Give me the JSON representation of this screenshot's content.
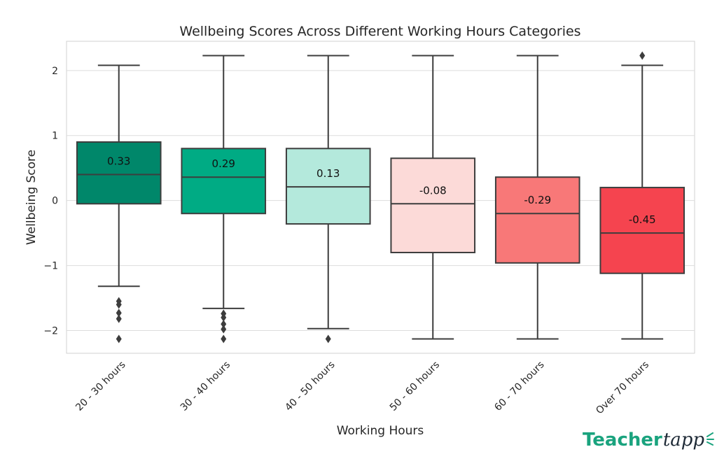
{
  "chart_data": {
    "type": "box",
    "title": "Wellbeing Scores Across Different Working Hours Categories",
    "xlabel": "Working Hours",
    "ylabel": "Wellbeing Score",
    "ylim": [
      -2.35,
      2.45
    ],
    "yticks": [
      -2,
      -1,
      0,
      1,
      2
    ],
    "ytick_labels": [
      "−2",
      "−1",
      "0",
      "1",
      "2"
    ],
    "grid": true,
    "categories": [
      "20 - 30 hours",
      "30 - 40 hours",
      "40 - 50 hours",
      "50 - 60 hours",
      "60 - 70 hours",
      "Over 70 hours"
    ],
    "boxes": [
      {
        "category": "20 - 30 hours",
        "whisker_low": -1.32,
        "q1": -0.05,
        "median": 0.4,
        "q3": 0.9,
        "whisker_high": 2.08,
        "outliers": [
          -1.55,
          -1.6,
          -1.73,
          -1.82,
          -2.13
        ],
        "mean_label": "0.33",
        "color": "#00876a"
      },
      {
        "category": "30 - 40 hours",
        "whisker_low": -1.66,
        "q1": -0.2,
        "median": 0.36,
        "q3": 0.8,
        "whisker_high": 2.23,
        "outliers": [
          -1.74,
          -1.8,
          -1.9,
          -1.98,
          -2.13
        ],
        "mean_label": "0.29",
        "color": "#00ab84"
      },
      {
        "category": "40 - 50 hours",
        "whisker_low": -1.97,
        "q1": -0.36,
        "median": 0.21,
        "q3": 0.8,
        "whisker_high": 2.23,
        "outliers": [
          -2.13
        ],
        "mean_label": "0.13",
        "color": "#b4e9dc"
      },
      {
        "category": "50 - 60 hours",
        "whisker_low": -2.13,
        "q1": -0.8,
        "median": -0.05,
        "q3": 0.65,
        "whisker_high": 2.23,
        "outliers": [],
        "mean_label": "-0.08",
        "color": "#fcdad8"
      },
      {
        "category": "60 - 70 hours",
        "whisker_low": -2.13,
        "q1": -0.96,
        "median": -0.2,
        "q3": 0.36,
        "whisker_high": 2.23,
        "outliers": [],
        "mean_label": "-0.29",
        "color": "#f87878"
      },
      {
        "category": "Over 70 hours",
        "whisker_low": -2.13,
        "q1": -1.12,
        "median": -0.5,
        "q3": 0.2,
        "whisker_high": 2.08,
        "outliers": [
          2.23
        ],
        "mean_label": "-0.45",
        "color": "#f5444f"
      }
    ]
  },
  "brand": {
    "name_part1": "Teacher",
    "name_part2": "tapp",
    "color_part1": "#1aa37e",
    "color_part2": "#1e2a36"
  }
}
